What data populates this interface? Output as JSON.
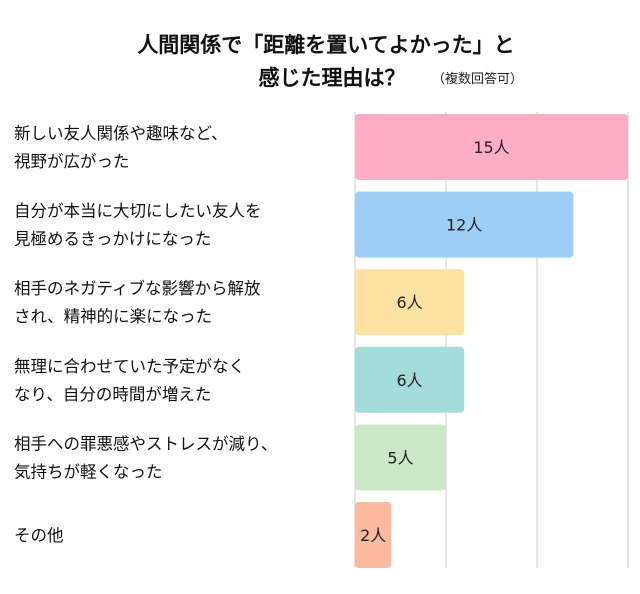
{
  "chart_data": {
    "type": "bar",
    "orientation": "horizontal",
    "title_lines": [
      "人間関係で「距離を置いてよかった」と",
      "感じた理由は？"
    ],
    "note": "（複数回答可）",
    "categories": [
      [
        "新しい友人関係や趣味など、",
        "視野が広がった"
      ],
      [
        "自分が本当に大切にしたい友人を",
        "見極めるきっかけになった"
      ],
      [
        "相手のネガティブな影響から解放",
        "され、精神的に楽になった"
      ],
      [
        "無理に合わせていた予定がなく",
        "なり、自分の時間が増えた"
      ],
      [
        "相手への罪悪感やストレスが減り、",
        "気持ちが軽くなった"
      ],
      [
        "その他"
      ]
    ],
    "values": [
      15,
      12,
      6,
      6,
      5,
      2
    ],
    "value_labels": [
      "15人",
      "12人",
      "6人",
      "6人",
      "5人",
      "2人"
    ],
    "xlim": [
      0,
      15
    ],
    "grid": true,
    "legend": "none",
    "colors": [
      "#ffadc4",
      "#9dcef5",
      "#fde1a3",
      "#a4dcda",
      "#cbe9c6",
      "#fcb9a0"
    ]
  }
}
